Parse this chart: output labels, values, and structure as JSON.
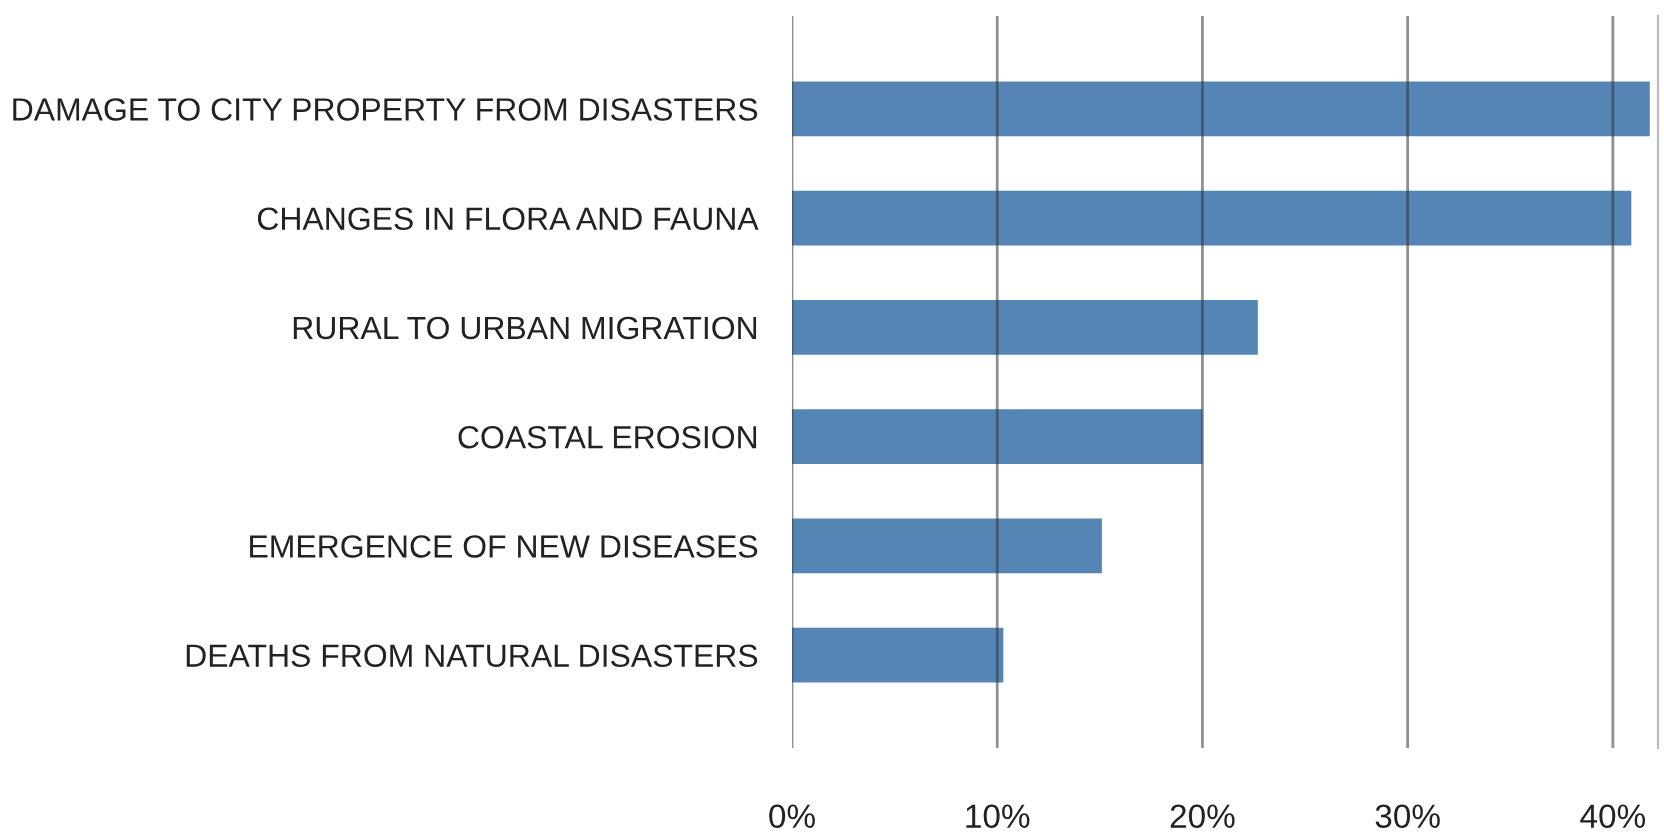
{
  "chart_data": {
    "type": "bar",
    "orientation": "horizontal",
    "categories": [
      "DAMAGE TO CITY PROPERTY FROM DISASTERS",
      "CHANGES IN FLORA AND FAUNA",
      "RURAL TO URBAN MIGRATION",
      "COASTAL EROSION",
      "EMERGENCE OF NEW DISEASES",
      "DEATHS FROM NATURAL DISASTERS"
    ],
    "values": [
      41.8,
      40.9,
      22.7,
      20.0,
      15.1,
      10.3
    ],
    "color": "#5585b5",
    "xlim": [
      0,
      42.2
    ],
    "xticks": [
      {
        "value": 0,
        "label": "0%"
      },
      {
        "value": 10,
        "label": "10%"
      },
      {
        "value": 20,
        "label": "20%"
      },
      {
        "value": 30,
        "label": "30%"
      },
      {
        "value": 40,
        "label": "40%"
      }
    ],
    "grid": "x",
    "legend": false
  }
}
